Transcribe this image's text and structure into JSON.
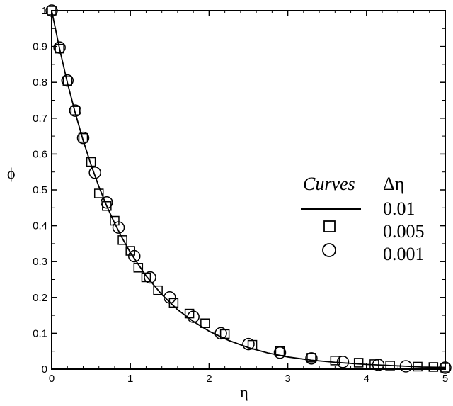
{
  "chart_data": {
    "type": "line",
    "xlabel": "η",
    "ylabel": "ϕ",
    "xlim": [
      0,
      5
    ],
    "ylim": [
      0,
      1
    ],
    "x_ticks": [
      0,
      1,
      2,
      3,
      4,
      5
    ],
    "y_ticks": [
      0,
      0.1,
      0.2,
      0.3,
      0.4,
      0.5,
      0.6,
      0.7,
      0.8,
      0.9,
      1
    ],
    "x_tick_labels": [
      "0",
      "1",
      "2",
      "3",
      "4",
      "5"
    ],
    "y_tick_labels": [
      "0",
      "0.1",
      "0.2",
      "0.3",
      "0.4",
      "0.5",
      "0.6",
      "0.7",
      "0.8",
      "0.9",
      "1"
    ],
    "grid": false,
    "legend": {
      "placement": "right-middle",
      "header_left": "Curves",
      "header_right": "Δη",
      "entries": [
        {
          "marker": "line",
          "label": "0.01"
        },
        {
          "marker": "square",
          "label": "0.005"
        },
        {
          "marker": "circle",
          "label": "0.001"
        }
      ]
    },
    "series": [
      {
        "name": "0.01",
        "style": "line",
        "x": [
          0,
          0.1,
          0.2,
          0.3,
          0.4,
          0.5,
          0.6,
          0.7,
          0.8,
          0.9,
          1.0,
          1.2,
          1.4,
          1.6,
          1.8,
          2.0,
          2.25,
          2.5,
          2.75,
          3.0,
          3.3,
          3.6,
          4.0,
          4.4,
          4.7,
          5.0
        ],
        "y": [
          1,
          0.894,
          0.799,
          0.714,
          0.638,
          0.57,
          0.509,
          0.455,
          0.407,
          0.364,
          0.325,
          0.26,
          0.208,
          0.166,
          0.133,
          0.106,
          0.08,
          0.06,
          0.045,
          0.034,
          0.025,
          0.019,
          0.013,
          0.009,
          0.006,
          0.005
        ]
      },
      {
        "name": "0.005",
        "style": "square",
        "x": [
          0,
          0.1,
          0.2,
          0.3,
          0.4,
          0.5,
          0.6,
          0.7,
          0.8,
          0.9,
          1.0,
          1.1,
          1.2,
          1.35,
          1.55,
          1.75,
          1.95,
          2.2,
          2.55,
          2.9,
          3.3,
          3.6,
          3.9,
          4.1,
          4.3,
          4.65,
          4.85,
          5.0
        ],
        "y": [
          1,
          0.894,
          0.804,
          0.721,
          0.645,
          0.578,
          0.49,
          0.455,
          0.414,
          0.36,
          0.33,
          0.283,
          0.256,
          0.22,
          0.185,
          0.155,
          0.128,
          0.098,
          0.068,
          0.05,
          0.032,
          0.024,
          0.018,
          0.014,
          0.01,
          0.007,
          0.006,
          0.004
        ]
      },
      {
        "name": "0.001",
        "style": "circle",
        "x": [
          0,
          0.1,
          0.2,
          0.3,
          0.4,
          0.55,
          0.7,
          0.85,
          1.05,
          1.25,
          1.5,
          1.8,
          2.15,
          2.5,
          2.9,
          3.3,
          3.7,
          4.15,
          4.5,
          5.0
        ],
        "y": [
          1,
          0.897,
          0.805,
          0.721,
          0.645,
          0.548,
          0.465,
          0.395,
          0.315,
          0.256,
          0.2,
          0.146,
          0.1,
          0.07,
          0.046,
          0.03,
          0.02,
          0.012,
          0.008,
          0.004
        ]
      }
    ]
  }
}
